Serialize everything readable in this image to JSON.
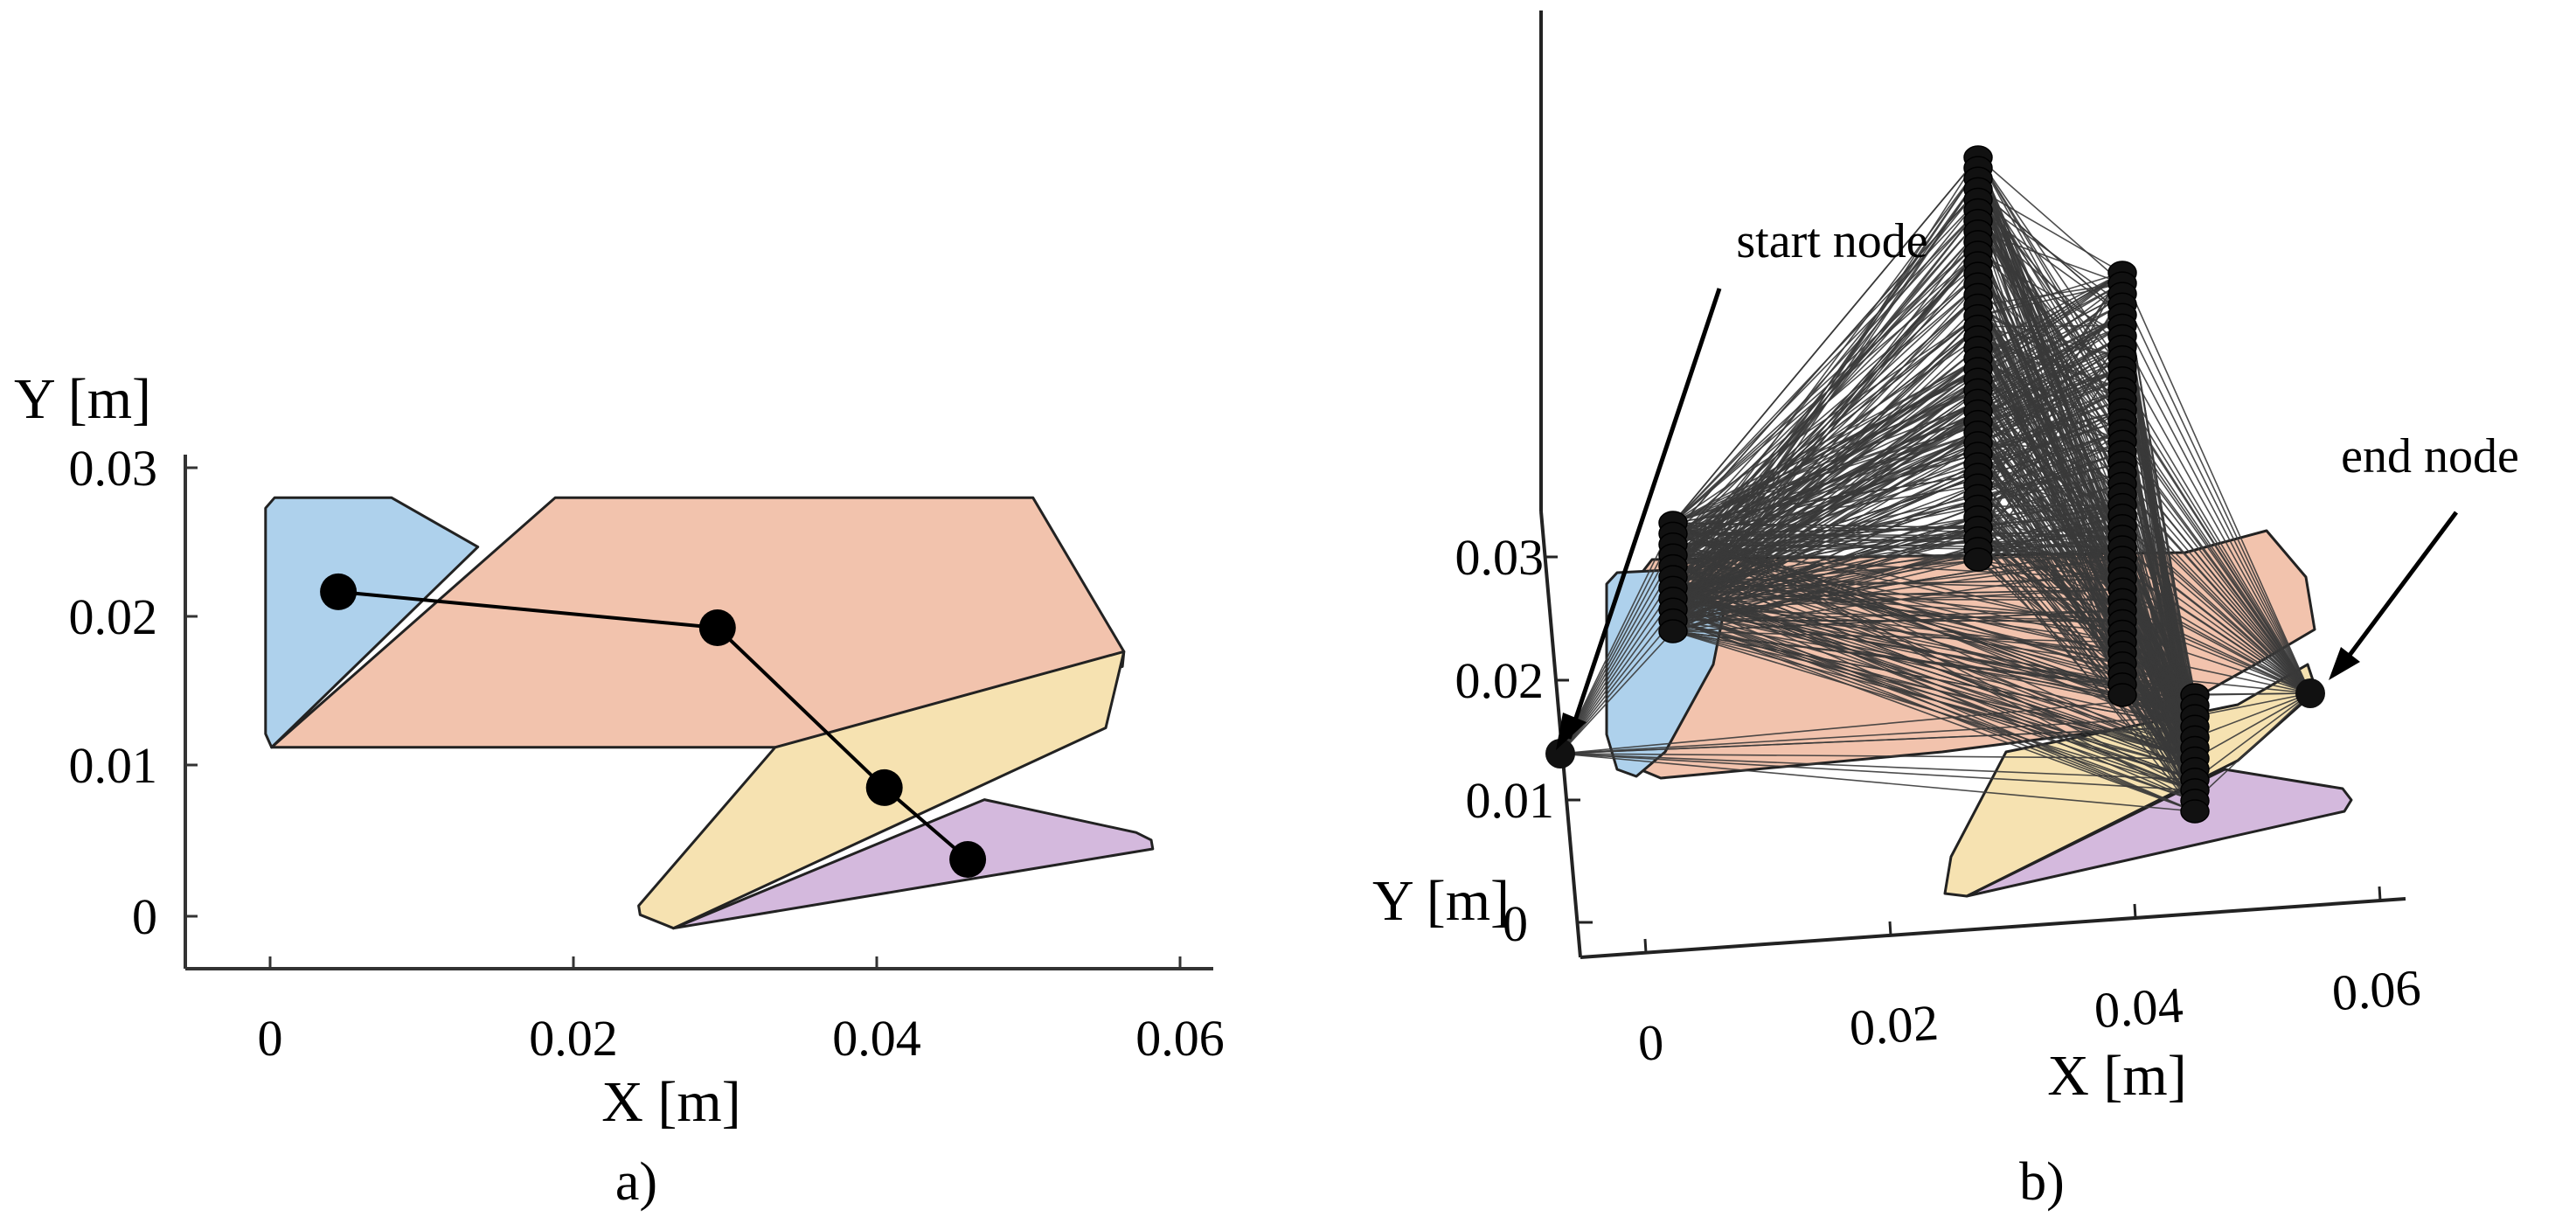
{
  "colors": {
    "blue": "#aed1ec",
    "salmon": "#f2c3ad",
    "yellow": "#f6e2b1",
    "purple": "#d4b9dd",
    "outline": "#222222",
    "node": "#000000",
    "edge": "#3a3a3a"
  },
  "panel_a": {
    "caption": "a)",
    "x_label": "X [m]",
    "y_label": "Y [m]",
    "x_ticks": [
      "0",
      "0.02",
      "0.04",
      "0.06"
    ],
    "y_ticks": [
      "0",
      "0.01",
      "0.02",
      "0.03"
    ],
    "regions": [
      {
        "name": "region-blue",
        "color": "blue",
        "points": [
          [
            -0.0003,
            0.0122
          ],
          [
            -0.0003,
            0.0273
          ],
          [
            0.0003,
            0.028
          ],
          [
            0.008,
            0.028
          ],
          [
            0.0137,
            0.0247
          ],
          [
            0.0001,
            0.0113
          ]
        ]
      },
      {
        "name": "region-salmon",
        "color": "salmon",
        "points": [
          [
            0.0001,
            0.0113
          ],
          [
            0.0188,
            0.028
          ],
          [
            0.0503,
            0.028
          ],
          [
            0.0563,
            0.0177
          ],
          [
            0.0562,
            0.0167
          ],
          [
            0.0333,
            0.0113
          ]
        ]
      },
      {
        "name": "region-yellow",
        "color": "yellow",
        "points": [
          [
            0.0333,
            0.0113
          ],
          [
            0.0563,
            0.0177
          ],
          [
            0.0551,
            0.0126
          ],
          [
            0.0266,
            -0.0008
          ],
          [
            0.0244,
            0.0001
          ],
          [
            0.0243,
            0.0007
          ]
        ]
      },
      {
        "name": "region-purple",
        "color": "purple",
        "points": [
          [
            0.0266,
            -0.0008
          ],
          [
            0.0471,
            0.0078
          ],
          [
            0.0571,
            0.0056
          ],
          [
            0.0581,
            0.0051
          ],
          [
            0.0582,
            0.0045
          ]
        ]
      }
    ],
    "path_nodes": [
      [
        0.0045,
        0.0217
      ],
      [
        0.0295,
        0.0193
      ],
      [
        0.0405,
        0.0086
      ],
      [
        0.046,
        0.0038
      ]
    ]
  },
  "panel_b": {
    "caption": "b)",
    "x_label": "X [m]",
    "y_label": "Y [m]",
    "x_ticks": [
      "0",
      "0.02",
      "0.04",
      "0.06"
    ],
    "y_ticks": [
      "0",
      "0.01",
      "0.02",
      "0.03"
    ],
    "start_label": "start node",
    "end_label": "end node"
  }
}
